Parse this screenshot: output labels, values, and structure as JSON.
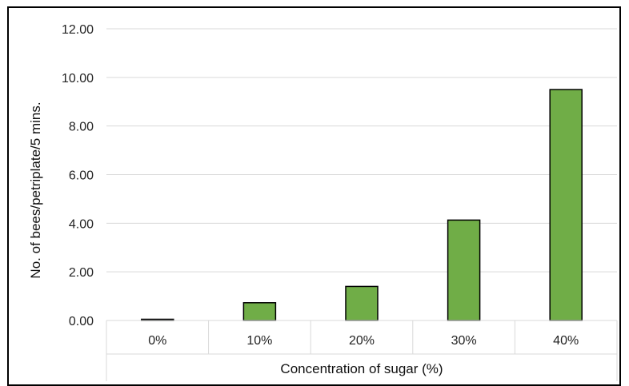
{
  "chart_data": {
    "type": "bar",
    "title": "",
    "xlabel": "Concentration of sugar (%)",
    "ylabel": "No. of bees/petriplate/5 mins.",
    "categories": [
      "0%",
      "10%",
      "20%",
      "30%",
      "40%"
    ],
    "values": [
      0.05,
      0.73,
      1.4,
      4.13,
      9.5
    ],
    "ylim": [
      0,
      12
    ],
    "yticks": [
      "0.00",
      "2.00",
      "4.00",
      "6.00",
      "8.00",
      "10.00",
      "12.00"
    ],
    "grid": true,
    "legend": "none",
    "colors": {
      "bar_fill": "#70ad47",
      "bar_stroke": "#000000",
      "grid": "#d9d9d9",
      "axis": "#d9d9d9"
    }
  }
}
